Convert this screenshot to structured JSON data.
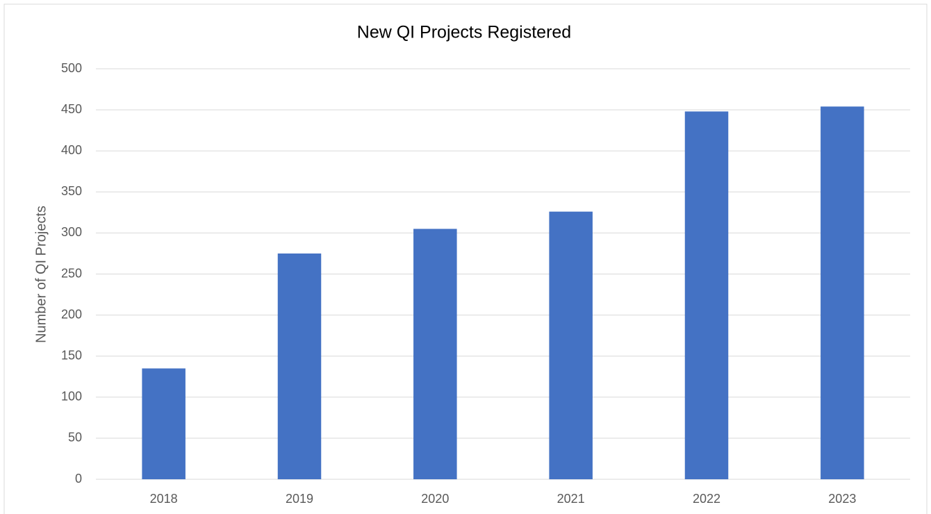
{
  "chart_data": {
    "type": "bar",
    "title": "New QI Projects Registered",
    "y_label": "Number of QI Projects",
    "categories": [
      "2018",
      "2019",
      "2020",
      "2021",
      "2022",
      "2023"
    ],
    "values": [
      135,
      275,
      305,
      326,
      448,
      454
    ],
    "color": "#4472c4",
    "ylim": [
      0,
      500
    ],
    "yticks": [
      0,
      50,
      100,
      150,
      200,
      250,
      300,
      350,
      400,
      450,
      500
    ],
    "grid": true
  }
}
